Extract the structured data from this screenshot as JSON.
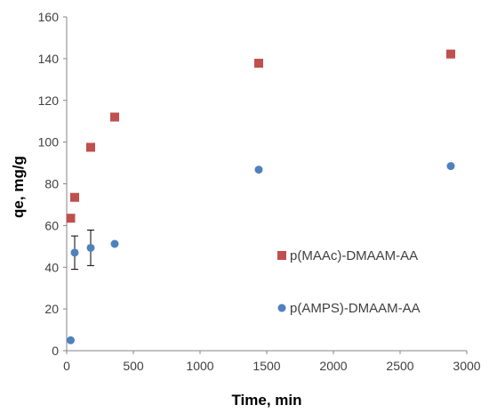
{
  "chart_data": {
    "type": "scatter",
    "title": "",
    "xlabel": "Time, min",
    "ylabel": "qe, mg/g",
    "xlim": [
      0,
      3000
    ],
    "ylim": [
      0,
      160
    ],
    "x_ticks": [
      0,
      500,
      1000,
      1500,
      2000,
      2500,
      3000
    ],
    "y_ticks": [
      0,
      20,
      40,
      60,
      80,
      100,
      120,
      140,
      160
    ],
    "x_tick_labels": [
      "0",
      "500",
      "1000",
      "1500",
      "2000",
      "2500",
      "3000"
    ],
    "y_tick_labels": [
      "0",
      "20",
      "40",
      "60",
      "80",
      "100",
      "120",
      "140",
      "160"
    ],
    "grid": false,
    "legend_position": "right-middle",
    "series": [
      {
        "name": "p(MAAc)-DMAAM-AA",
        "marker": "square",
        "color": "#C0504D",
        "points": [
          {
            "x": 30,
            "y": 63.5
          },
          {
            "x": 60,
            "y": 73.5
          },
          {
            "x": 180,
            "y": 97.5
          },
          {
            "x": 360,
            "y": 112
          },
          {
            "x": 1440,
            "y": 137.8
          },
          {
            "x": 2880,
            "y": 142.2
          }
        ]
      },
      {
        "name": "p(AMPS)-DMAAM-AA",
        "marker": "circle",
        "color": "#4F81BD",
        "points": [
          {
            "x": 30,
            "y": 5
          },
          {
            "x": 60,
            "y": 47,
            "err": 8
          },
          {
            "x": 180,
            "y": 49.3,
            "err": 8.5
          },
          {
            "x": 360,
            "y": 51.2
          },
          {
            "x": 1440,
            "y": 86.8
          },
          {
            "x": 2880,
            "y": 88.5
          }
        ]
      }
    ]
  }
}
